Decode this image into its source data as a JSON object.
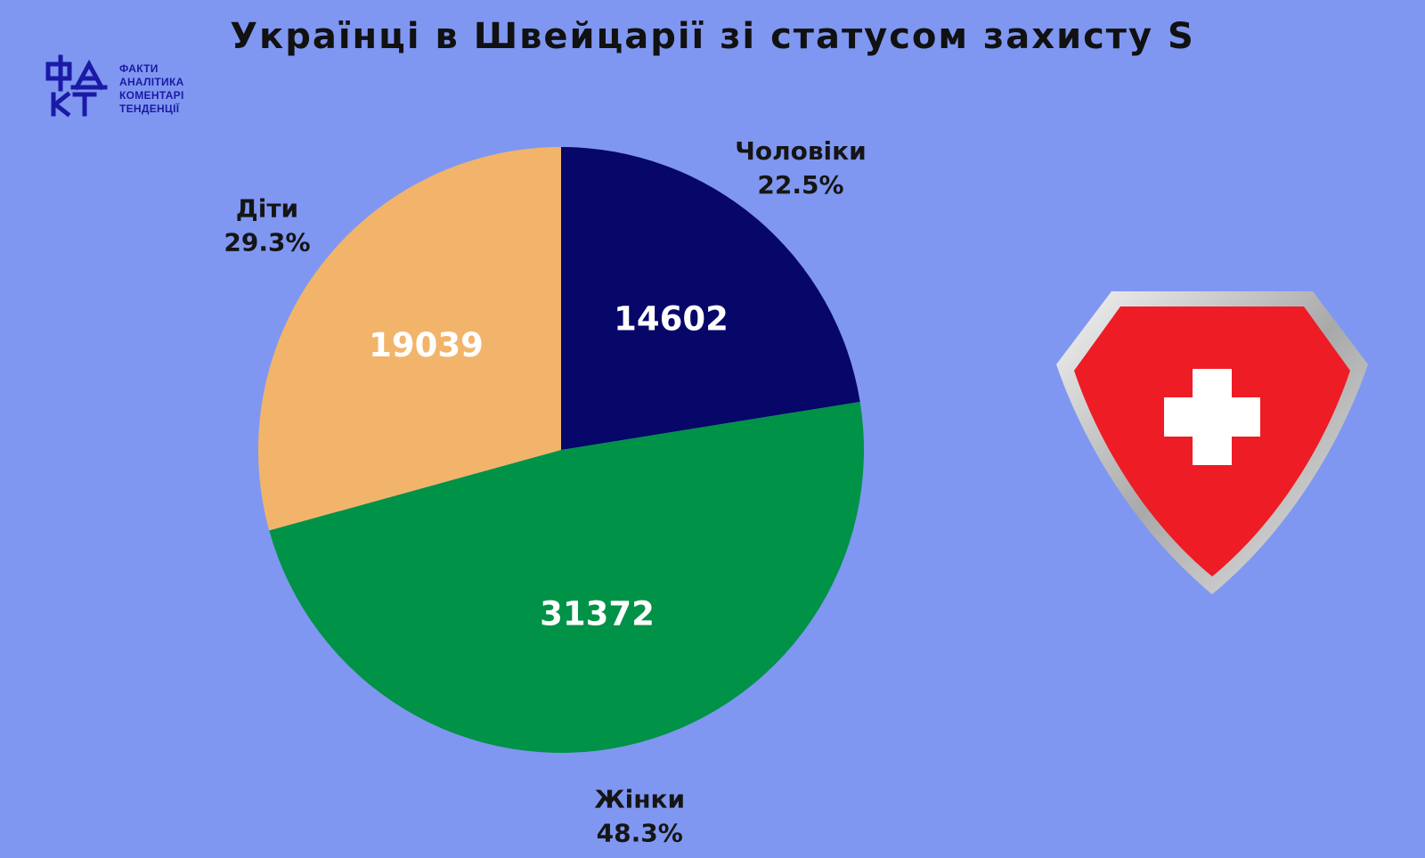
{
  "title": "Українці в Швейцарії зі статусом захисту S",
  "logo": {
    "mark": "ФАКТ",
    "lines": [
      "ФАКТИ",
      "АНАЛІТИКА",
      "КОМЕНТАРІ",
      "ТЕНДЕНЦІЇ"
    ]
  },
  "colors": {
    "background": "#7f97f1",
    "men": "#070669",
    "women": "#009247",
    "children": "#f2b46b",
    "shield_red": "#ee1c25",
    "shield_silver": "#bdbdbd"
  },
  "icons": {
    "shield": "swiss-shield-icon"
  },
  "chart_data": {
    "type": "pie",
    "title": "Українці в Швейцарії зі статусом захисту S",
    "legend": "none",
    "slices": [
      {
        "name": "Чоловіки",
        "value": 14602,
        "percent_label": "22.5%",
        "color": "#070669"
      },
      {
        "name": "Жінки",
        "value": 31372,
        "percent_label": "48.3%",
        "color": "#009247"
      },
      {
        "name": "Діти",
        "value": 19039,
        "percent_label": "29.3%",
        "color": "#f2b46b"
      }
    ]
  }
}
